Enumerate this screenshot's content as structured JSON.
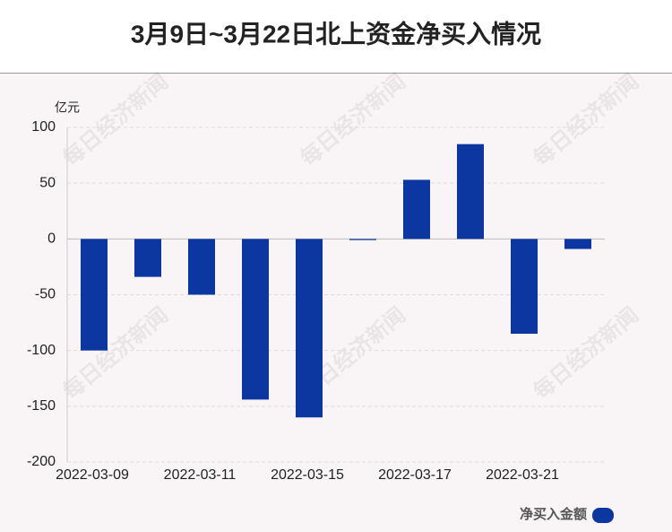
{
  "chart_data": {
    "type": "bar",
    "title": "3月9日~3月22日北上资金净买入情况",
    "y_label": "亿元",
    "watermark": "每日经济新闻",
    "categories": [
      "2022-03-09",
      null,
      "2022-03-11",
      null,
      "2022-03-15",
      null,
      "2022-03-17",
      null,
      "2022-03-21",
      null
    ],
    "series": [
      {
        "name": "净买入金额",
        "color": "#0c36a0",
        "values": [
          -100,
          -34,
          -50,
          -144,
          -160,
          -1,
          53,
          85,
          -85,
          -9
        ]
      }
    ],
    "ylim": [
      -200,
      100
    ],
    "yticks": [
      -200,
      -150,
      -100,
      -50,
      0,
      50,
      100
    ],
    "grid": true,
    "legend": "bottom-right"
  }
}
